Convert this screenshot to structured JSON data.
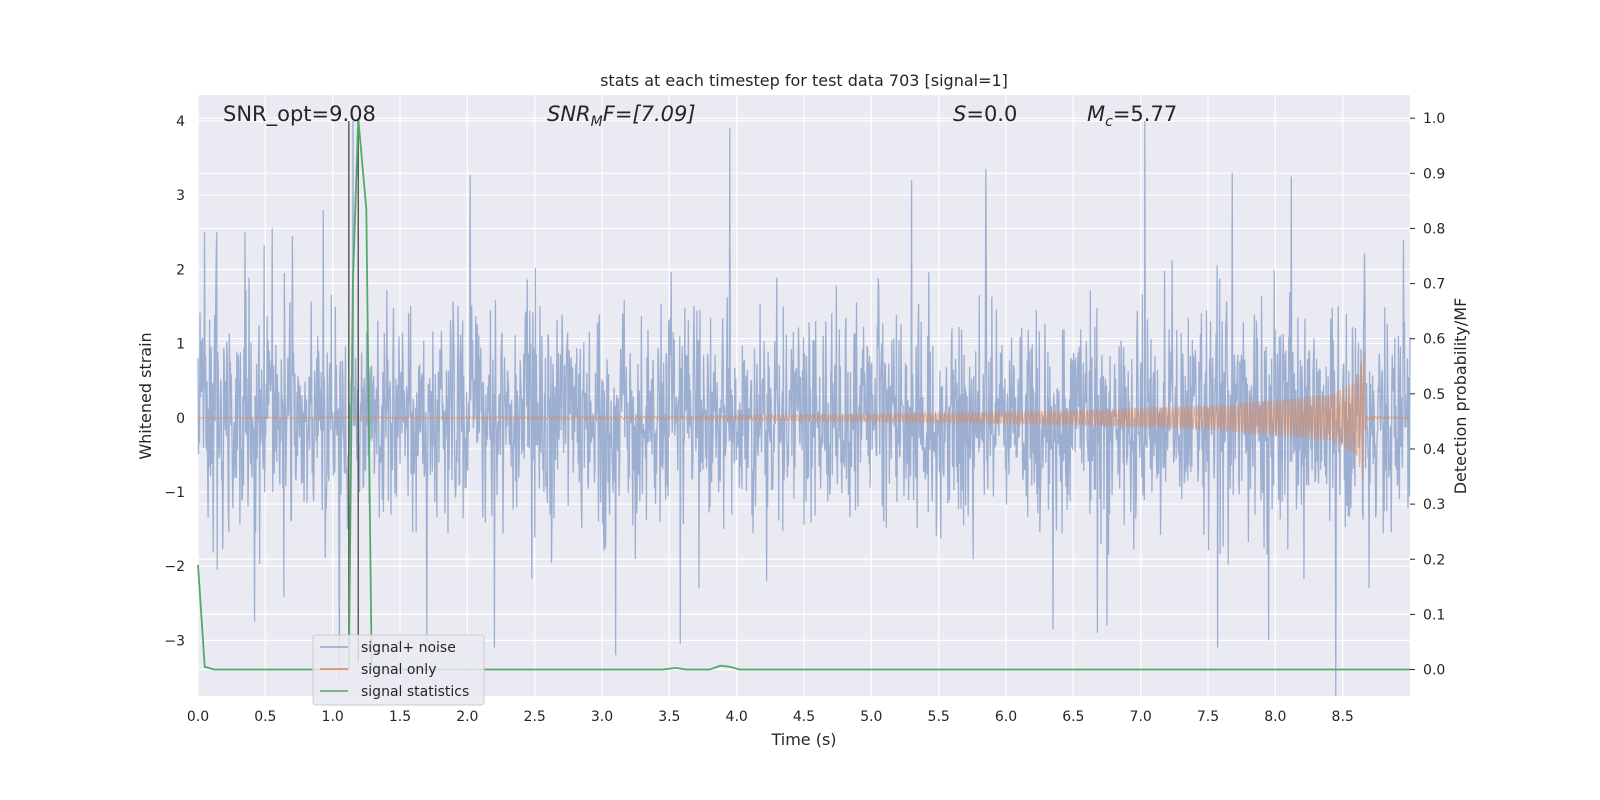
{
  "chart_data": {
    "type": "line",
    "title": "stats at each timestep for test data 703 [signal=1]",
    "xlabel": "Time (s)",
    "ylabel": "Whitened strain",
    "ylabel_right": "Detection probability/MF",
    "xlim": [
      0.0,
      9.0
    ],
    "ylim": [
      -3.75,
      4.35
    ],
    "ylim_right": [
      -0.048,
      1.042
    ],
    "xticks": [
      "0.0",
      "0.5",
      "1.0",
      "1.5",
      "2.0",
      "2.5",
      "3.0",
      "3.5",
      "4.0",
      "4.5",
      "5.0",
      "5.5",
      "6.0",
      "6.5",
      "7.0",
      "7.5",
      "8.0",
      "8.5"
    ],
    "yticks": [
      "4",
      "3",
      "2",
      "1",
      "0",
      "−1",
      "−2",
      "−3"
    ],
    "yticks_right": [
      "1.0",
      "0.9",
      "0.8",
      "0.7",
      "0.6",
      "0.5",
      "0.4",
      "0.3",
      "0.2",
      "0.1",
      "0.0"
    ],
    "grid": true,
    "legend_position": "lower-left",
    "annotations": [
      {
        "text": "SNR_opt=9.08",
        "italic_part": ""
      },
      {
        "text": "SNR",
        "sub": "M",
        "rest": "F=[7.09]"
      },
      {
        "text": "S",
        "rest": "=0.0"
      },
      {
        "text": "M",
        "sub": "c",
        "rest": "=5.77"
      }
    ],
    "vertical_lines_x": [
      1.12,
      1.19
    ],
    "series": [
      {
        "name": "signal+ noise",
        "color": "#8fa4cb",
        "noise_std": 0.72,
        "peaks": [
          [
            0.05,
            2.5
          ],
          [
            0.14,
            2.5
          ],
          [
            0.35,
            2.5
          ],
          [
            0.55,
            2.55
          ],
          [
            0.7,
            2.45
          ],
          [
            0.93,
            2.8
          ],
          [
            1.15,
            4.0
          ],
          [
            2.02,
            3.27
          ],
          [
            3.95,
            3.9
          ],
          [
            5.3,
            3.2
          ],
          [
            5.85,
            3.35
          ],
          [
            7.03,
            4.0
          ],
          [
            7.68,
            3.3
          ],
          [
            8.12,
            3.25
          ],
          [
            8.95,
            2.4
          ],
          [
            0.42,
            -2.75
          ],
          [
            1.05,
            -3.55
          ],
          [
            1.7,
            -3.0
          ],
          [
            2.2,
            -3.1
          ],
          [
            3.1,
            -3.2
          ],
          [
            3.58,
            -3.05
          ],
          [
            6.35,
            -2.85
          ],
          [
            6.68,
            -2.9
          ],
          [
            6.75,
            -2.8
          ],
          [
            7.57,
            -3.1
          ],
          [
            7.95,
            -3.0
          ],
          [
            8.45,
            -3.75
          ]
        ]
      },
      {
        "name": "signal only",
        "color": "#dd8452",
        "envelope": [
          [
            0.0,
            0.005
          ],
          [
            3.5,
            0.02
          ],
          [
            5.0,
            0.05
          ],
          [
            6.5,
            0.1
          ],
          [
            7.5,
            0.17
          ],
          [
            8.2,
            0.27
          ],
          [
            8.5,
            0.38
          ],
          [
            8.6,
            0.55
          ],
          [
            8.66,
            0.9
          ],
          [
            8.67,
            0.02
          ],
          [
            9.0,
            0.005
          ]
        ]
      },
      {
        "name": "signal statistics",
        "color": "#55a868",
        "x": [
          0.0,
          0.05,
          0.12,
          0.2,
          0.4,
          1.0,
          1.12,
          1.15,
          1.19,
          1.25,
          1.29,
          1.35,
          1.45,
          2.0,
          3.45,
          3.55,
          3.62,
          3.8,
          3.88,
          3.95,
          4.02,
          4.1,
          5.0,
          6.0,
          7.0,
          8.0,
          9.0
        ],
        "y": [
          0.19,
          0.005,
          0.0,
          0.0,
          0.0,
          0.0,
          0.0,
          0.7,
          1.0,
          0.835,
          0.0,
          0.0,
          0.0,
          0.0,
          0.0,
          0.003,
          0.0,
          0.0,
          0.007,
          0.005,
          0.0,
          0.0,
          0.0,
          0.0,
          0.0,
          0.0,
          0.0
        ]
      }
    ]
  }
}
